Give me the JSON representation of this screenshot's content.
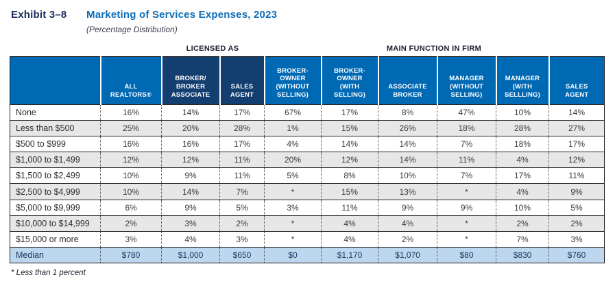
{
  "page": {
    "exhibit_label": "Exhibit 3–8",
    "title": "Marketing of Services Expenses, 2023",
    "subtitle": "(Percentage Distribution)"
  },
  "colors": {
    "header_blue": "#0069b4",
    "header_navy": "#133e70",
    "title_blue": "#0d6db8",
    "title_navy": "#1b2c5e",
    "median_row_bg": "#bdd7ee",
    "alt_row_bg": "#e7e7e7"
  },
  "table": {
    "group_headers": {
      "licensed_as": "LICENSED AS",
      "main_function": "MAIN FUNCTION IN FIRM"
    },
    "column_tones": [
      "blue",
      "blue",
      "navy",
      "navy",
      "blue",
      "blue",
      "blue",
      "blue",
      "blue",
      "blue"
    ],
    "row_shades": [
      "white",
      "gray",
      "white",
      "gray",
      "white",
      "gray",
      "white",
      "gray",
      "white",
      "median"
    ],
    "footnote": "* Less than 1 percent"
  },
  "chart_data": {
    "type": "table",
    "title": "Marketing of Services Expenses, 2023 (Percentage Distribution)",
    "columns": [
      "",
      "ALL\nREALTORS®",
      "BROKER/\nBROKER\nASSOCIATE",
      "SALES\nAGENT",
      "BROKER-\nOWNER\n(WITHOUT\nSELLING)",
      "BROKER-\nOWNER\n(WITH\nSELLING)",
      "ASSOCIATE\nBROKER",
      "MANAGER\n(WITHOUT\nSELLING)",
      "MANAGER\n(WITH\nSELLLING)",
      "SALES\nAGENT"
    ],
    "rows": [
      {
        "label": "None",
        "values": [
          "16%",
          "14%",
          "17%",
          "67%",
          "17%",
          "8%",
          "47%",
          "10%",
          "14%"
        ]
      },
      {
        "label": "Less than $500",
        "values": [
          "25%",
          "20%",
          "28%",
          "1%",
          "15%",
          "26%",
          "18%",
          "28%",
          "27%"
        ]
      },
      {
        "label": "$500 to $999",
        "values": [
          "16%",
          "16%",
          "17%",
          "4%",
          "14%",
          "14%",
          "7%",
          "18%",
          "17%"
        ]
      },
      {
        "label": "$1,000 to $1,499",
        "values": [
          "12%",
          "12%",
          "11%",
          "20%",
          "12%",
          "14%",
          "11%",
          "4%",
          "12%"
        ]
      },
      {
        "label": "$1,500 to $2,499",
        "values": [
          "10%",
          "9%",
          "11%",
          "5%",
          "8%",
          "10%",
          "7%",
          "17%",
          "11%"
        ]
      },
      {
        "label": "$2,500 to $4,999",
        "values": [
          "10%",
          "14%",
          "7%",
          "*",
          "15%",
          "13%",
          "*",
          "4%",
          "9%"
        ]
      },
      {
        "label": "$5,000 to $9,999",
        "values": [
          "6%",
          "9%",
          "5%",
          "3%",
          "11%",
          "9%",
          "9%",
          "10%",
          "5%"
        ]
      },
      {
        "label": "$10,000 to $14,999",
        "values": [
          "2%",
          "3%",
          "2%",
          "*",
          "4%",
          "4%",
          "*",
          "2%",
          "2%"
        ]
      },
      {
        "label": "$15,000 or more",
        "values": [
          "3%",
          "4%",
          "3%",
          "*",
          "4%",
          "2%",
          "*",
          "7%",
          "3%"
        ]
      },
      {
        "label": "Median",
        "values": [
          "$780",
          "$1,000",
          "$650",
          "$0",
          "$1,170",
          "$1,070",
          "$80",
          "$830",
          "$760"
        ]
      }
    ]
  }
}
